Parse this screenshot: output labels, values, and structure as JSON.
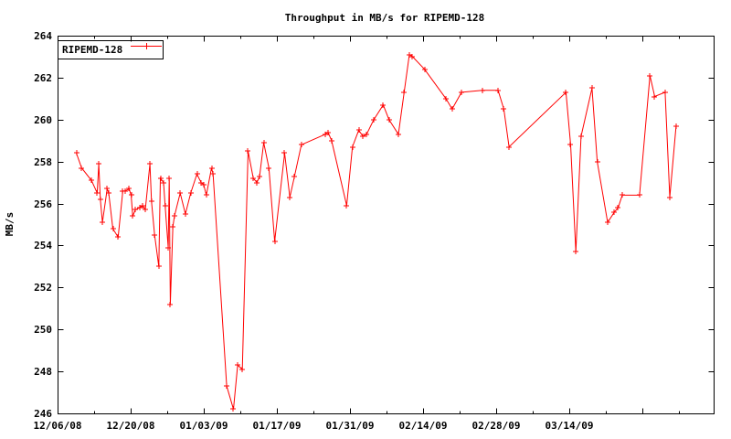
{
  "title": "Throughput in MB/s for RIPEMD-128",
  "ylabel": "MB/s",
  "legend": {
    "label": "RIPEMD-128"
  },
  "colors": {
    "series": "#ff0000",
    "axis": "#000000",
    "text": "#000000",
    "background": "#ffffff"
  },
  "chart_data": {
    "type": "line",
    "title": "Throughput in MB/s for RIPEMD-128",
    "ylabel": "MB/s",
    "grid": false,
    "legend_position": "top-left-boxed",
    "marker": "plus",
    "x_unit": "days since 12/06/08",
    "xlim_days": [
      0,
      125.7
    ],
    "ylim": [
      246,
      264
    ],
    "y_ticks": [
      246,
      248,
      250,
      252,
      254,
      256,
      258,
      260,
      262,
      264
    ],
    "x_major_ticks": [
      {
        "day": 0,
        "label": "12/06/08"
      },
      {
        "day": 14,
        "label": "12/20/08"
      },
      {
        "day": 28,
        "label": "01/03/09"
      },
      {
        "day": 42,
        "label": "01/17/09"
      },
      {
        "day": 56,
        "label": "01/31/09"
      },
      {
        "day": 70,
        "label": "02/14/09"
      },
      {
        "day": 84,
        "label": "02/28/09"
      },
      {
        "day": 98,
        "label": "03/14/09"
      },
      {
        "day": 112,
        "label": ""
      }
    ],
    "x_minor_tick_days": [
      7,
      21,
      35,
      49,
      63,
      77,
      91,
      105,
      119
    ],
    "series": [
      {
        "name": "RIPEMD-128",
        "color": "#ff0000",
        "marker": "plus",
        "points": [
          [
            3.6,
            258.4
          ],
          [
            4.6,
            257.7
          ],
          [
            6.5,
            257.1
          ],
          [
            7.6,
            256.5
          ],
          [
            7.9,
            257.9
          ],
          [
            8.2,
            256.2
          ],
          [
            8.6,
            255.1
          ],
          [
            9.5,
            256.7
          ],
          [
            9.8,
            256.5
          ],
          [
            10.6,
            254.8
          ],
          [
            11.6,
            254.4
          ],
          [
            12.5,
            256.6
          ],
          [
            12.9,
            256.6
          ],
          [
            13.7,
            256.7
          ],
          [
            14.1,
            256.4
          ],
          [
            14.4,
            255.4
          ],
          [
            14.9,
            255.7
          ],
          [
            15.7,
            255.8
          ],
          [
            16.3,
            255.9
          ],
          [
            16.8,
            255.7
          ],
          [
            17.7,
            257.9
          ],
          [
            18.0,
            256.1
          ],
          [
            18.6,
            254.5
          ],
          [
            19.4,
            253.0
          ],
          [
            19.7,
            257.2
          ],
          [
            20.3,
            257.0
          ],
          [
            20.6,
            255.9
          ],
          [
            21.2,
            253.9
          ],
          [
            21.4,
            257.2
          ],
          [
            21.6,
            251.2
          ],
          [
            22.1,
            254.9
          ],
          [
            22.4,
            255.4
          ],
          [
            23.5,
            256.5
          ],
          [
            24.5,
            255.5
          ],
          [
            25.5,
            256.5
          ],
          [
            26.7,
            257.4
          ],
          [
            27.5,
            257.0
          ],
          [
            28.0,
            256.9
          ],
          [
            28.5,
            256.4
          ],
          [
            29.5,
            257.7
          ],
          [
            29.8,
            257.4
          ],
          [
            32.4,
            247.3
          ],
          [
            33.7,
            246.2
          ],
          [
            34.5,
            248.3
          ],
          [
            35.4,
            248.1
          ],
          [
            36.5,
            258.5
          ],
          [
            37.5,
            257.2
          ],
          [
            38.2,
            257.0
          ],
          [
            38.7,
            257.3
          ],
          [
            39.5,
            258.9
          ],
          [
            40.5,
            257.7
          ],
          [
            41.6,
            254.2
          ],
          [
            43.5,
            258.4
          ],
          [
            44.5,
            256.3
          ],
          [
            45.4,
            257.3
          ],
          [
            46.7,
            258.8
          ],
          [
            51.3,
            259.3
          ],
          [
            51.8,
            259.4
          ],
          [
            52.5,
            259.0
          ],
          [
            55.4,
            255.9
          ],
          [
            56.5,
            258.7
          ],
          [
            57.7,
            259.5
          ],
          [
            58.5,
            259.2
          ],
          [
            59.2,
            259.3
          ],
          [
            60.6,
            260.0
          ],
          [
            62.4,
            260.7
          ],
          [
            63.5,
            260.0
          ],
          [
            65.3,
            259.3
          ],
          [
            66.4,
            261.3
          ],
          [
            67.4,
            263.1
          ],
          [
            68.0,
            263.0
          ],
          [
            70.3,
            262.4
          ],
          [
            74.4,
            261.0
          ],
          [
            75.6,
            260.5
          ],
          [
            77.4,
            261.3
          ],
          [
            81.4,
            261.4
          ],
          [
            84.4,
            261.4
          ],
          [
            85.5,
            260.5
          ],
          [
            86.5,
            258.7
          ],
          [
            97.4,
            261.3
          ],
          [
            98.3,
            258.8
          ],
          [
            99.3,
            253.7
          ],
          [
            100.3,
            259.2
          ],
          [
            102.4,
            261.5
          ],
          [
            103.4,
            258.0
          ],
          [
            105.4,
            255.1
          ],
          [
            106.7,
            255.6
          ],
          [
            107.4,
            255.8
          ],
          [
            108.2,
            256.4
          ],
          [
            111.5,
            256.4
          ],
          [
            113.5,
            262.1
          ],
          [
            114.4,
            261.1
          ],
          [
            116.4,
            261.3
          ],
          [
            117.3,
            256.3
          ],
          [
            118.5,
            259.7
          ]
        ]
      }
    ]
  }
}
